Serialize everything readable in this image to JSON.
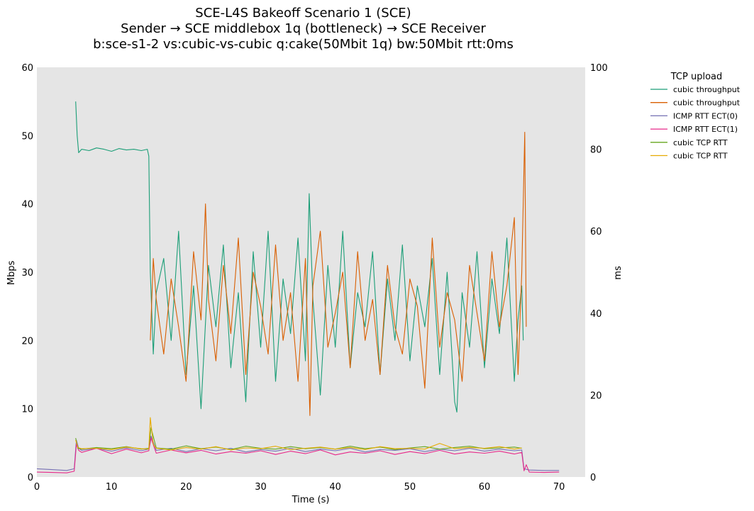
{
  "chart_data": {
    "type": "line",
    "title_lines": [
      "SCE-L4S Bakeoff Scenario 1 (SCE)",
      "Sender → SCE middlebox 1q (bottleneck) → SCE Receiver",
      "b:sce-s1-2 vs:cubic-vs-cubic q:cake(50Mbit 1q) bw:50Mbit rtt:0ms"
    ],
    "xlabel": "Time (s)",
    "ylabel_left": "Mbps",
    "ylabel_right": "ms",
    "xlim": [
      0,
      73.5
    ],
    "ylim_left": [
      0,
      60
    ],
    "ylim_right": [
      0,
      100
    ],
    "xticks": [
      0,
      10,
      20,
      30,
      40,
      50,
      60,
      70
    ],
    "yticks_left": [
      0,
      10,
      20,
      30,
      40,
      50,
      60
    ],
    "yticks_right": [
      0,
      20,
      40,
      60,
      80,
      100
    ],
    "grid": false,
    "background": "#e5e5e5",
    "legend": {
      "title": "TCP upload",
      "placement": "outside-top-right"
    },
    "series": [
      {
        "name": "cubic throughput",
        "axis": "left",
        "color": "#1b9e77",
        "x": [
          5.2,
          5.4,
          5.6,
          6,
          7,
          8,
          9,
          10,
          11,
          12,
          13,
          14,
          14.8,
          15.0,
          15.2,
          15.6,
          16,
          17,
          18,
          19,
          20,
          21,
          22,
          23,
          24,
          25,
          26,
          27,
          28,
          29,
          30,
          31,
          32,
          33,
          34,
          35,
          36,
          36.5,
          37,
          38,
          39,
          40,
          41,
          42,
          43,
          44,
          45,
          46,
          47,
          48,
          49,
          50,
          51,
          52,
          53,
          54,
          55,
          56,
          56.3,
          57,
          58,
          59,
          60,
          61,
          62,
          63,
          64,
          64.5,
          65.0,
          65.2
        ],
        "y": [
          55,
          50,
          47.5,
          48,
          47.8,
          48.2,
          48,
          47.7,
          48.1,
          47.9,
          48,
          47.8,
          48,
          47,
          30,
          18,
          27,
          32,
          20,
          36,
          15,
          28,
          10,
          31,
          22,
          34,
          16,
          27,
          11,
          33,
          19,
          36,
          14,
          29,
          21,
          35,
          17,
          41.5,
          26,
          12,
          31,
          19,
          36,
          16,
          27,
          22,
          33,
          15,
          29,
          20,
          34,
          17,
          28,
          22,
          32,
          15,
          30,
          11,
          9.5,
          27,
          19,
          33,
          16,
          29,
          21,
          35,
          14,
          23,
          28,
          20
        ]
      },
      {
        "name": "cubic throughput",
        "axis": "left",
        "color": "#d95f02",
        "x": [
          15.2,
          15.6,
          16,
          17,
          18,
          19,
          20,
          21,
          22,
          22.6,
          23,
          24,
          25,
          26,
          27,
          28,
          29,
          30,
          31,
          32,
          33,
          34,
          35,
          36,
          36.6,
          37,
          38,
          39,
          40,
          41,
          42,
          43,
          44,
          45,
          46,
          47,
          48,
          49,
          50,
          51,
          52,
          53,
          54,
          55,
          56,
          57,
          58,
          59,
          60,
          61,
          62,
          63,
          64,
          64.5,
          65.0,
          65.4,
          65.6
        ],
        "y": [
          20,
          32,
          26,
          18,
          29,
          22,
          14,
          33,
          23,
          40,
          26,
          17,
          31,
          21,
          35,
          15,
          30,
          25,
          18,
          34,
          20,
          27,
          14,
          32,
          9,
          28,
          36,
          19,
          24,
          30,
          16,
          33,
          20,
          26,
          15,
          31,
          22,
          18,
          29,
          25,
          13,
          35,
          19,
          27,
          23,
          14,
          31,
          24,
          17,
          33,
          22,
          28,
          38,
          15,
          30,
          50.5,
          22
        ]
      },
      {
        "name": "ICMP RTT ECT(0)",
        "axis": "right",
        "color": "#7570b3",
        "x": [
          0,
          2,
          4,
          5,
          5.3,
          5.6,
          6,
          8,
          10,
          12,
          14,
          15,
          15.3,
          16,
          18,
          20,
          22,
          24,
          26,
          28,
          30,
          32,
          34,
          36,
          38,
          40,
          42,
          44,
          46,
          48,
          50,
          52,
          54,
          56,
          58,
          60,
          62,
          64,
          65,
          65.3,
          66,
          68,
          70
        ],
        "y": [
          2,
          1.8,
          1.6,
          2,
          9,
          7,
          6.5,
          7,
          6.3,
          7.1,
          6.4,
          6.8,
          10,
          6.5,
          7,
          6.2,
          6.9,
          6.4,
          7,
          6.1,
          6.7,
          6.3,
          7,
          6.2,
          6.8,
          6.4,
          7,
          6.1,
          6.7,
          6.5,
          6.9,
          6.2,
          6.8,
          6.4,
          7,
          6.3,
          6.8,
          6.4,
          6.6,
          2,
          1.7,
          1.6,
          1.6
        ]
      },
      {
        "name": "ICMP RTT ECT(1)",
        "axis": "right",
        "color": "#e7298a",
        "x": [
          0,
          2,
          4,
          5,
          5.3,
          5.6,
          6,
          8,
          10,
          12,
          14,
          15,
          15.3,
          16,
          18,
          20,
          22,
          24,
          26,
          28,
          30,
          32,
          34,
          36,
          38,
          40,
          42,
          44,
          46,
          48,
          50,
          52,
          54,
          56,
          58,
          60,
          62,
          64,
          65,
          65.3,
          65.6,
          66,
          68,
          70
        ],
        "y": [
          1.2,
          1.1,
          1,
          1.4,
          8,
          6.5,
          6,
          7,
          5.7,
          6.8,
          5.9,
          6.4,
          9.5,
          5.8,
          6.6,
          5.9,
          6.5,
          5.6,
          6.2,
          5.8,
          6.4,
          5.5,
          6.3,
          5.7,
          6.6,
          5.4,
          6.1,
          5.8,
          6.4,
          5.5,
          6.2,
          5.7,
          6.5,
          5.6,
          6.1,
          5.8,
          6.3,
          5.6,
          6,
          1.5,
          3,
          1.2,
          1.1,
          1.2
        ]
      },
      {
        "name": "cubic TCP RTT",
        "axis": "right",
        "color": "#66a61e",
        "x": [
          5.2,
          5.5,
          6,
          8,
          10,
          12,
          14,
          15,
          15.3,
          16,
          18,
          20,
          22,
          24,
          26,
          28,
          30,
          32,
          34,
          36,
          38,
          40,
          42,
          44,
          46,
          48,
          50,
          52,
          54,
          56,
          58,
          60,
          62,
          64,
          65
        ],
        "y": [
          9.5,
          7,
          6.8,
          7.2,
          6.9,
          7.4,
          6.8,
          7,
          12,
          7.1,
          6.8,
          7.6,
          6.9,
          7.3,
          6.7,
          7.5,
          7,
          6.8,
          7.4,
          6.9,
          7.2,
          6.8,
          7.5,
          6.9,
          7.3,
          6.7,
          7.1,
          7.4,
          6.8,
          7.2,
          7.5,
          6.9,
          7.1,
          7.3,
          7
        ]
      },
      {
        "name": "cubic TCP RTT",
        "axis": "right",
        "color": "#e6ab02",
        "x": [
          5.2,
          5.5,
          6,
          8,
          10,
          12,
          14,
          15,
          15.2,
          15.6,
          16,
          18,
          20,
          22,
          24,
          26,
          28,
          30,
          32,
          34,
          36,
          38,
          40,
          42,
          44,
          46,
          48,
          50,
          52,
          54,
          56,
          58,
          60,
          62,
          64,
          65
        ],
        "y": [
          9,
          7.2,
          6.9,
          7,
          6.7,
          7.3,
          6.9,
          6.8,
          14.5,
          8,
          7,
          6.6,
          7.2,
          6.8,
          7.4,
          6.6,
          7.1,
          6.9,
          7.5,
          6.7,
          7,
          7.3,
          6.8,
          7.2,
          6.7,
          7.4,
          6.9,
          7,
          6.8,
          8.2,
          6.9,
          7.2,
          7,
          7.4,
          6.8,
          7.1
        ]
      }
    ]
  }
}
